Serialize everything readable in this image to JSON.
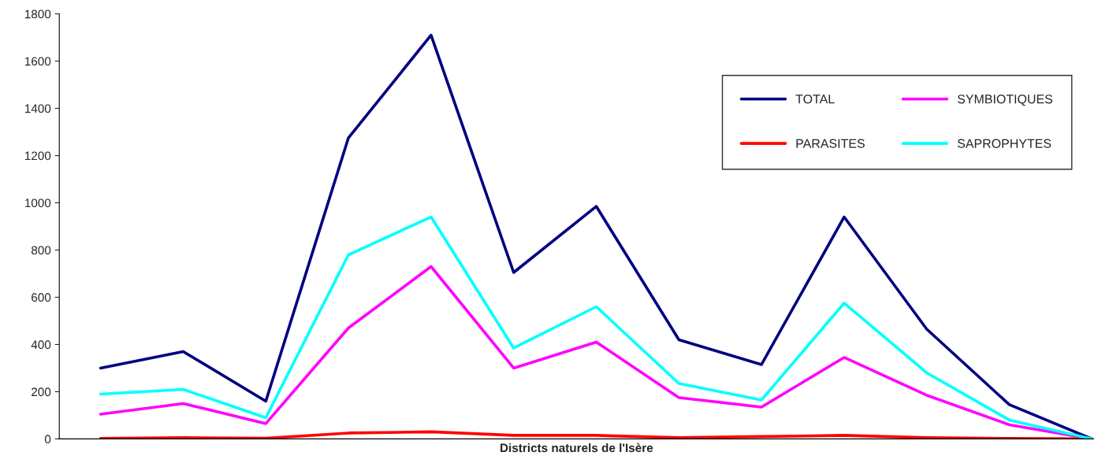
{
  "chart_data": {
    "type": "line",
    "xlabel": "Districts naturels de l'Isère",
    "categories": [
      null,
      null,
      null,
      null,
      null,
      null,
      null,
      null,
      null,
      null,
      null,
      null,
      null
    ],
    "series": [
      {
        "name": "TOTAL",
        "color": "#000080",
        "values": [
          300,
          370,
          160,
          1275,
          1710,
          705,
          985,
          420,
          315,
          940,
          465,
          145,
          0
        ]
      },
      {
        "name": "SYMBIOTIQUES",
        "color": "#ff00ff",
        "values": [
          105,
          150,
          65,
          470,
          730,
          300,
          410,
          175,
          135,
          345,
          185,
          60,
          0
        ]
      },
      {
        "name": "PARASITES",
        "color": "#ff0000",
        "values": [
          2,
          5,
          3,
          25,
          30,
          15,
          15,
          5,
          10,
          15,
          5,
          2,
          0
        ]
      },
      {
        "name": "SAPROPHYTES",
        "color": "#00ffff",
        "values": [
          190,
          210,
          90,
          780,
          940,
          385,
          560,
          235,
          165,
          575,
          280,
          80,
          0
        ]
      }
    ],
    "ylim": [
      0,
      1800
    ],
    "yticks": [
      0,
      200,
      400,
      600,
      800,
      1000,
      1200,
      1400,
      1600,
      1800
    ],
    "grid": false,
    "legend": "top right",
    "tick_labels": "y",
    "marker": "none",
    "line_style": "solid"
  }
}
